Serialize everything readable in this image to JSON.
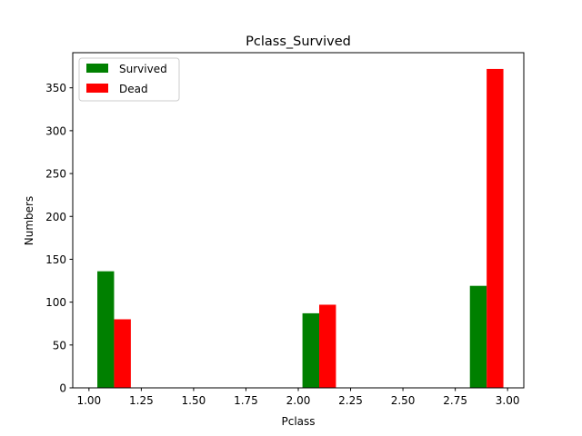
{
  "chart_data": {
    "type": "bar",
    "title": "Pclass_Survived",
    "xlabel": "Pclass",
    "ylabel": "Numbers",
    "xlim": [
      0.9225,
      3.0775
    ],
    "ylim": [
      0,
      391
    ],
    "xticks": [
      1.0,
      1.25,
      1.5,
      1.75,
      2.0,
      2.25,
      2.5,
      2.75,
      3.0
    ],
    "xtick_labels": [
      "1.00",
      "1.25",
      "1.50",
      "1.75",
      "2.00",
      "2.25",
      "2.50",
      "2.75",
      "3.00"
    ],
    "yticks": [
      0,
      50,
      100,
      150,
      200,
      250,
      300,
      350
    ],
    "ytick_labels": [
      "0",
      "50",
      "100",
      "150",
      "200",
      "250",
      "300",
      "350"
    ],
    "grid": false,
    "legend_position": "top-left",
    "series": [
      {
        "name": "Survived",
        "color": "#008000",
        "bars": [
          {
            "x_start": 1.04,
            "x_end": 1.12,
            "value": 136
          },
          {
            "x_start": 2.02,
            "x_end": 2.1,
            "value": 87
          },
          {
            "x_start": 2.82,
            "x_end": 2.9,
            "value": 119
          }
        ]
      },
      {
        "name": "Dead",
        "color": "#ff0000",
        "bars": [
          {
            "x_start": 1.12,
            "x_end": 1.2,
            "value": 80
          },
          {
            "x_start": 2.1,
            "x_end": 2.18,
            "value": 97
          },
          {
            "x_start": 2.9,
            "x_end": 2.98,
            "value": 372
          }
        ]
      }
    ]
  }
}
